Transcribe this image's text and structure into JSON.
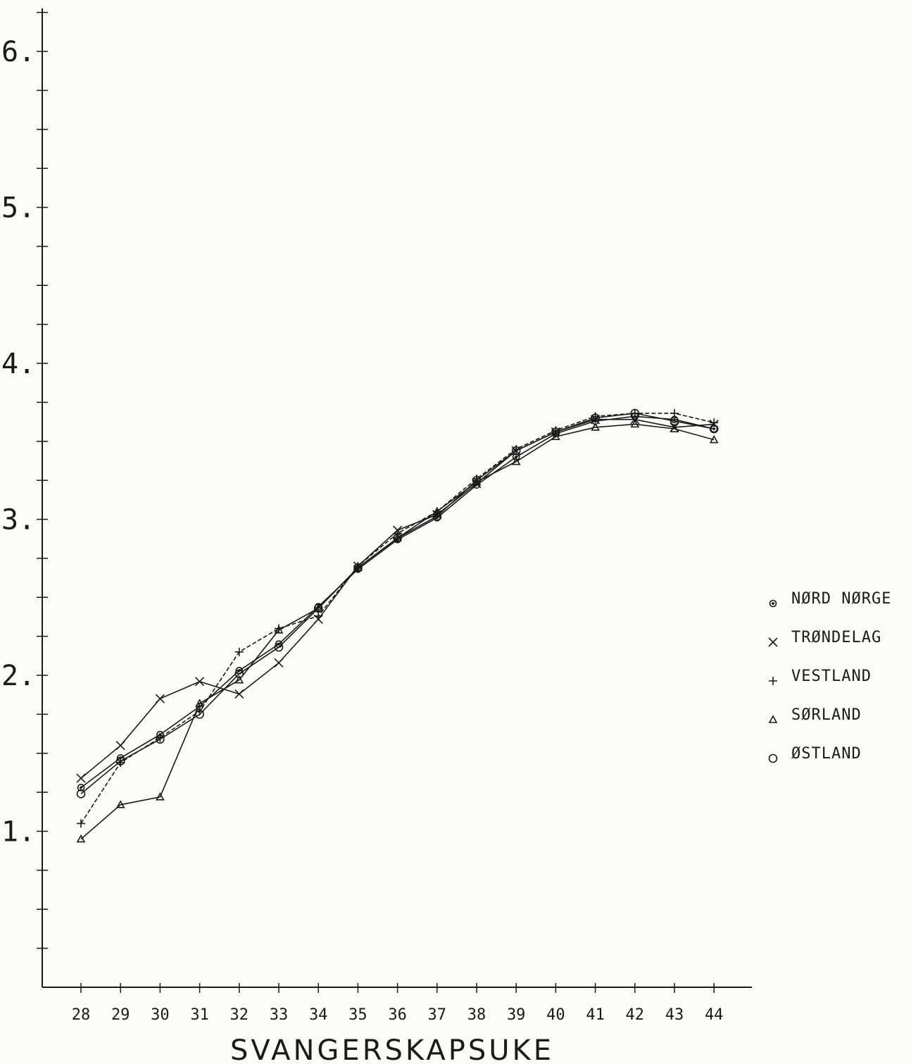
{
  "chart_data": {
    "type": "line",
    "xlabel": "SVANGERSKAPSUKE",
    "ylabel": "",
    "title": "",
    "x": [
      28,
      29,
      30,
      31,
      32,
      33,
      34,
      35,
      36,
      37,
      38,
      39,
      40,
      41,
      42,
      43,
      44
    ],
    "x_tick_labels": [
      "28",
      "29",
      "30",
      "31",
      "32",
      "33",
      "34",
      "35",
      "36",
      "37",
      "38",
      "39",
      "40",
      "41",
      "42",
      "43",
      "44"
    ],
    "xlim": [
      27,
      46
    ],
    "ylim": [
      0,
      6.3
    ],
    "y_ticks": [
      1,
      2,
      3,
      4,
      5,
      6
    ],
    "y_tick_labels": [
      "1.",
      "2.",
      "3.",
      "4.",
      "5.",
      "6."
    ],
    "y_minor_tick_step": 0.25,
    "grid": false,
    "legend_position": "right",
    "series": [
      {
        "name": "NØRD NØRGE",
        "marker": "diamond-circle",
        "values": [
          1.28,
          1.47,
          1.62,
          1.8,
          2.03,
          2.2,
          2.44,
          2.68,
          2.87,
          3.01,
          3.22,
          3.4,
          3.55,
          3.63,
          3.66,
          3.64,
          3.58
        ]
      },
      {
        "name": "TRØNDELAG",
        "marker": "x",
        "values": [
          1.34,
          1.55,
          1.85,
          1.96,
          1.88,
          2.08,
          2.36,
          2.7,
          2.93,
          3.03,
          3.23,
          3.44,
          3.56,
          3.64,
          3.64,
          3.59,
          3.61
        ]
      },
      {
        "name": "VESTLAND",
        "marker": "plus",
        "values": [
          1.05,
          1.44,
          1.6,
          1.77,
          2.15,
          2.3,
          2.38,
          2.7,
          2.91,
          3.05,
          3.26,
          3.45,
          3.57,
          3.66,
          3.68,
          3.68,
          3.62
        ]
      },
      {
        "name": "SØRLAND",
        "marker": "triangle",
        "values": [
          0.95,
          1.17,
          1.22,
          1.82,
          1.97,
          2.29,
          2.43,
          2.69,
          2.88,
          3.05,
          3.24,
          3.37,
          3.53,
          3.59,
          3.61,
          3.58,
          3.51
        ]
      },
      {
        "name": "ØSTLAND",
        "marker": "circle",
        "values": [
          1.24,
          1.45,
          1.59,
          1.75,
          2.01,
          2.18,
          2.43,
          2.69,
          2.88,
          3.02,
          3.25,
          3.44,
          3.56,
          3.65,
          3.68,
          3.63,
          3.58
        ]
      }
    ]
  }
}
